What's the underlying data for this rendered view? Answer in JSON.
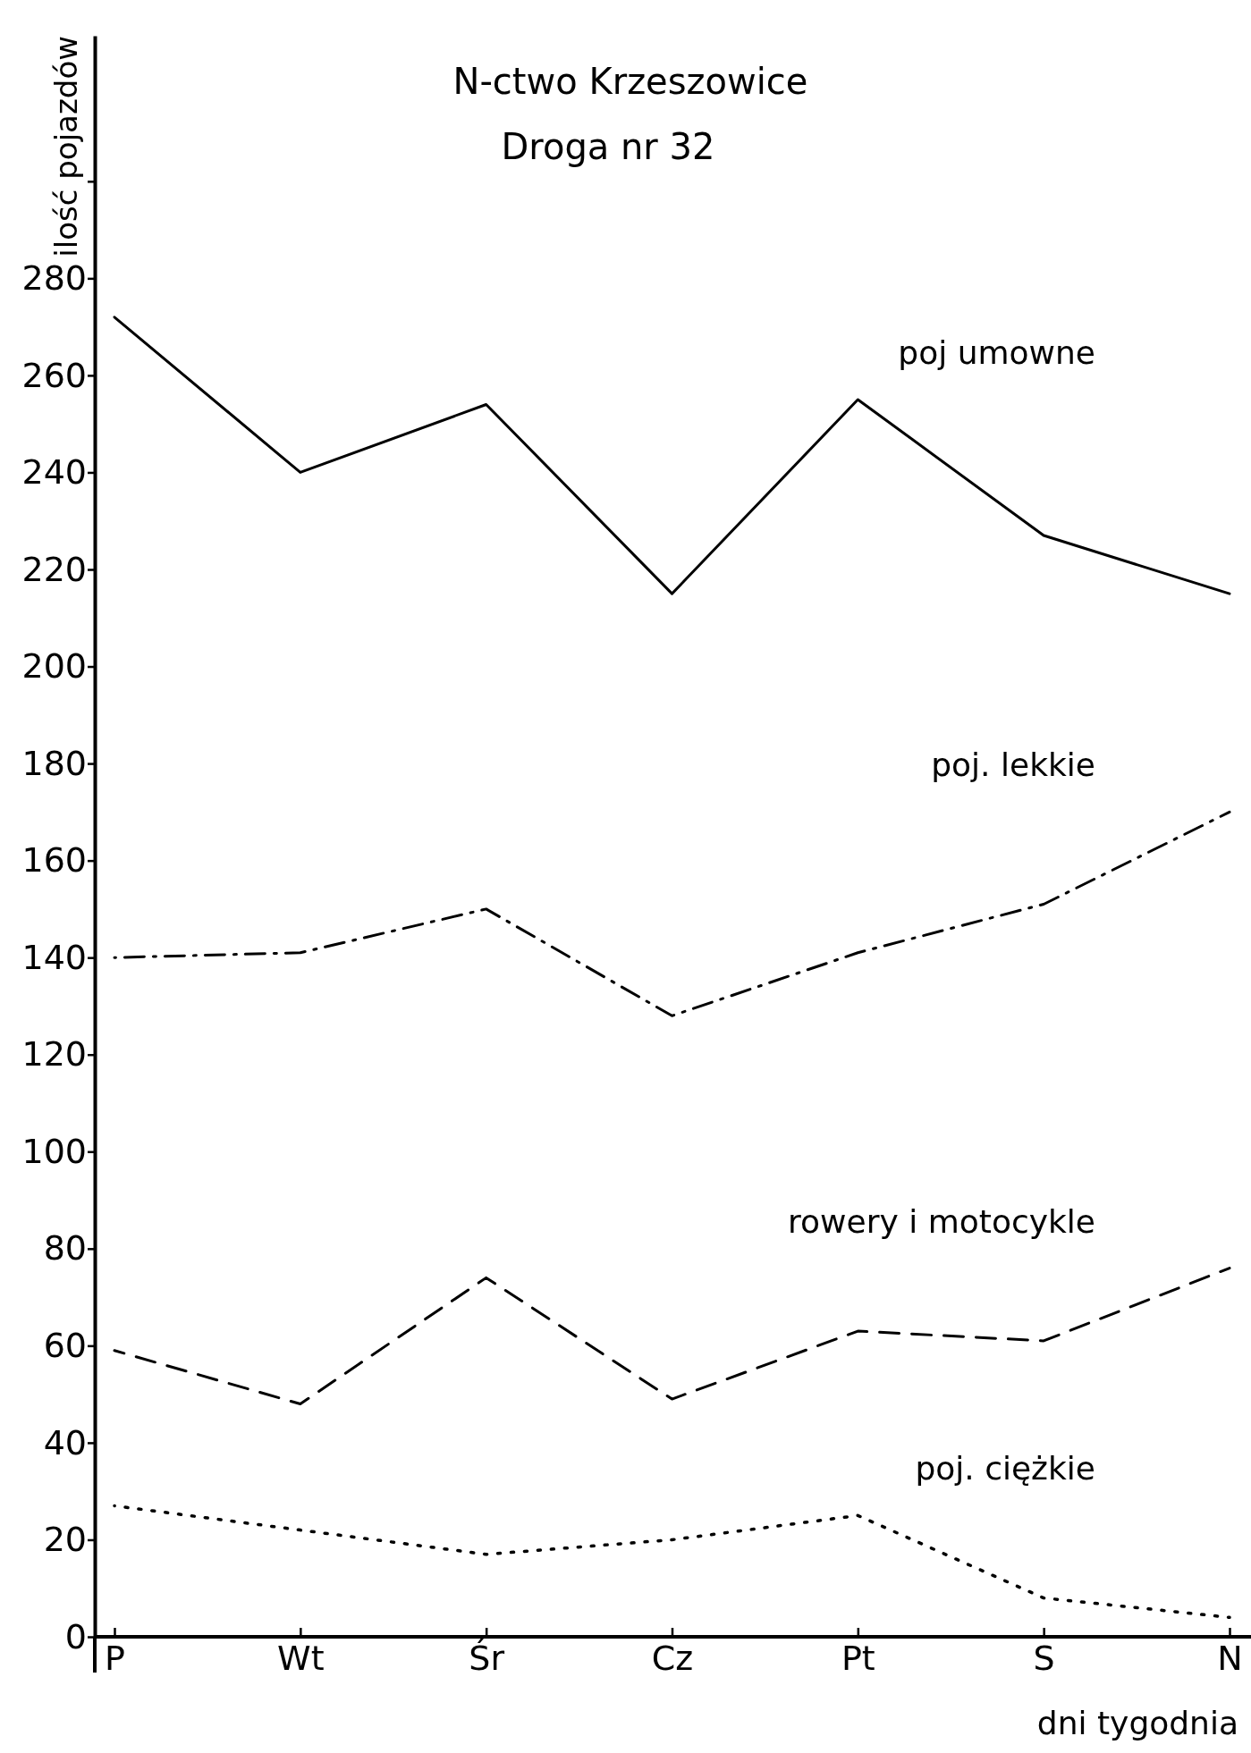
{
  "chart_data": {
    "type": "line",
    "title": "N-ctwo Krzeszowice",
    "subtitle": "Droga nr 32",
    "xlabel": "dni tygodnia",
    "ylabel": "ilość pojazdów",
    "categories": [
      "P",
      "Wt",
      "Śr",
      "Cz",
      "Pt",
      "S",
      "N"
    ],
    "series": [
      {
        "name": "poj umowne",
        "color": "#000000",
        "line_style": "solid",
        "values": [
          272,
          240,
          254,
          215,
          255,
          227,
          215
        ]
      },
      {
        "name": "poj. lekkie",
        "color": "#000000",
        "line_style": "dashdot",
        "values": [
          140,
          141,
          150,
          128,
          141,
          151,
          170
        ]
      },
      {
        "name": "rowery i motocykle",
        "color": "#000000",
        "line_style": "dashed",
        "values": [
          59,
          48,
          74,
          49,
          63,
          61,
          76
        ]
      },
      {
        "name": "poj. ciężkie",
        "color": "#000000",
        "line_style": "dotted",
        "values": [
          27,
          22,
          17,
          20,
          25,
          8,
          4
        ]
      }
    ],
    "ylim": [
      0,
      330
    ],
    "yticks": [
      0,
      20,
      40,
      60,
      80,
      100,
      120,
      140,
      160,
      180,
      200,
      220,
      240,
      260,
      280,
      {
        "value": 300,
        "label": null
      }
    ],
    "grid": false,
    "legend": false,
    "marker": "none"
  }
}
